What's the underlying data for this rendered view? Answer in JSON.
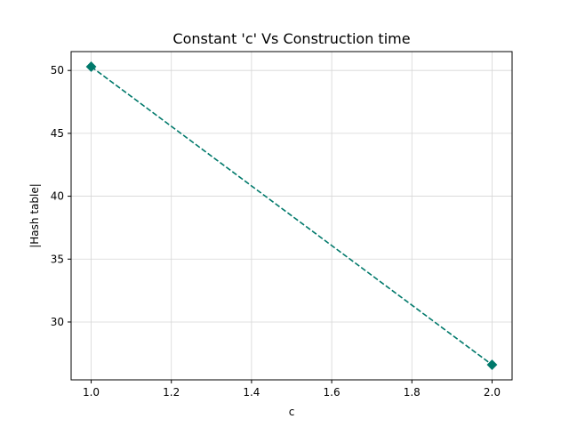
{
  "chart_data": {
    "type": "line",
    "title": "Constant 'c' Vs Construction time",
    "xlabel": "c",
    "ylabel": "|Hash table|",
    "xlim": [
      0.95,
      2.05
    ],
    "ylim": [
      25.4,
      51.5
    ],
    "xticks": [
      1.0,
      1.2,
      1.4,
      1.6,
      1.8,
      2.0
    ],
    "xtick_labels": [
      "1.0",
      "1.2",
      "1.4",
      "1.6",
      "1.8",
      "2.0"
    ],
    "yticks": [
      30,
      35,
      40,
      45,
      50
    ],
    "ytick_labels": [
      "30",
      "35",
      "40",
      "45",
      "50"
    ],
    "grid": true,
    "series": [
      {
        "x": [
          1.0,
          2.0
        ],
        "y": [
          50.3,
          26.6
        ],
        "color": "#00796b",
        "line_style": "dashed",
        "marker": "diamond"
      }
    ]
  }
}
